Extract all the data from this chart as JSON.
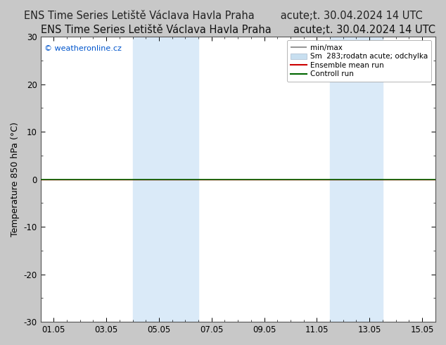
{
  "title_left": "ENS Time Series Letiště Václava Havla Praha",
  "title_right": "acute;t. 30.04.2024 14 UTC",
  "ylabel": "Temperature 850 hPa (°C)",
  "ylim": [
    -30,
    30
  ],
  "yticks": [
    -30,
    -20,
    -10,
    0,
    10,
    20,
    30
  ],
  "xticklabels": [
    "01.05",
    "03.05",
    "05.05",
    "07.05",
    "09.05",
    "11.05",
    "13.05",
    "15.05"
  ],
  "x_values": [
    0,
    2,
    4,
    6,
    8,
    10,
    12,
    14
  ],
  "xlim": [
    -0.5,
    14.5
  ],
  "shaded_bands": [
    {
      "xmin": 3.0,
      "xmax": 5.5
    },
    {
      "xmin": 10.5,
      "xmax": 12.5
    }
  ],
  "shade_color": "#daeaf8",
  "ensemble_mean_color": "#cc0000",
  "controll_run_color": "#006600",
  "min_max_color": "#999999",
  "spread_color": "#c8dff0",
  "legend_label_0": "min/max",
  "legend_label_1": "Sm  283;rodatn acute; odchylka",
  "legend_label_2": "Ensemble mean run",
  "legend_label_3": "Controll run",
  "watermark": "© weatheronline.cz",
  "watermark_color": "#0055cc",
  "fig_facecolor": "#c8c8c8",
  "plot_facecolor": "#ffffff",
  "title_fontsize": 10.5,
  "axis_fontsize": 9,
  "tick_fontsize": 8.5,
  "legend_fontsize": 7.5
}
